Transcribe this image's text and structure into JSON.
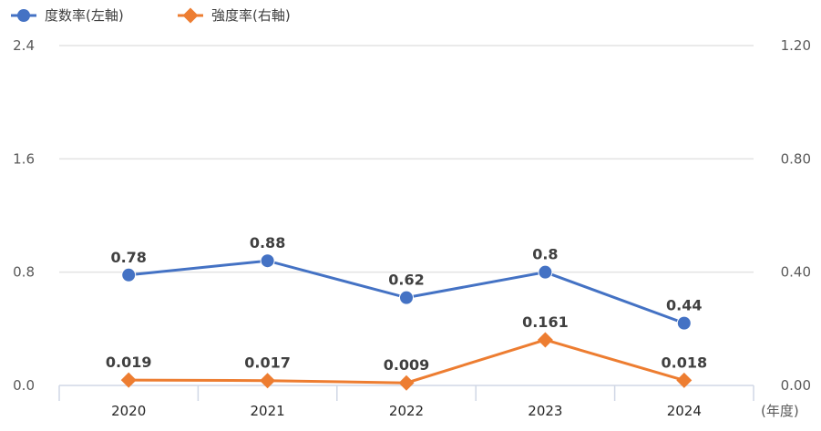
{
  "chart_data": {
    "type": "line",
    "categories": [
      "2020",
      "2021",
      "2022",
      "2023",
      "2024"
    ],
    "xlabel": "(年度)",
    "series": [
      {
        "name": "度数率(左軸)",
        "axis": "left",
        "color": "#4472c4",
        "marker": "circle",
        "values": [
          0.78,
          0.88,
          0.62,
          0.8,
          0.44
        ],
        "labels": [
          "0.78",
          "0.88",
          "0.62",
          "0.8",
          "0.44"
        ]
      },
      {
        "name": "強度率(右軸)",
        "axis": "right",
        "color": "#ed7d31",
        "marker": "diamond",
        "values": [
          0.019,
          0.017,
          0.009,
          0.161,
          0.018
        ],
        "labels": [
          "0.019",
          "0.017",
          "0.009",
          "0.161",
          "0.018"
        ]
      }
    ],
    "y_left": {
      "lim": [
        0,
        2.4
      ],
      "ticks": [
        "0.0",
        "0.8",
        "1.6",
        "2.4"
      ]
    },
    "y_right": {
      "lim": [
        0,
        1.2
      ],
      "ticks": [
        "0.00",
        "0.40",
        "0.80",
        "1.20"
      ]
    },
    "grid": true,
    "legend": "top-left"
  }
}
